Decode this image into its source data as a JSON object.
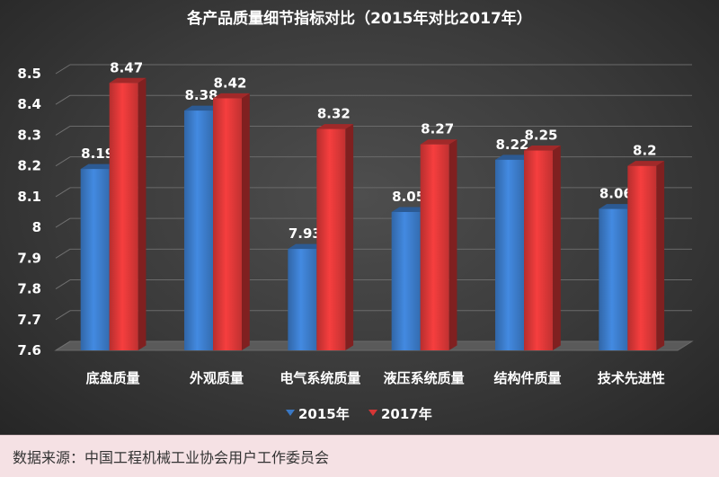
{
  "chart_data": {
    "type": "bar",
    "title": "各产品质量细节指标对比（2015年对比2017年）",
    "categories": [
      "底盘质量",
      "外观质量",
      "电气系统质量",
      "液压系统质量",
      "结构件质量",
      "技术先进性"
    ],
    "series": [
      {
        "name": "2015年",
        "values": [
          8.19,
          8.38,
          7.93,
          8.05,
          8.22,
          8.06
        ],
        "labels": [
          "8.19",
          "8.38",
          "7.93",
          "8.05",
          "8.22",
          "8.06"
        ],
        "color": "#3a78c4"
      },
      {
        "name": "2017年",
        "values": [
          8.47,
          8.42,
          8.32,
          8.27,
          8.25,
          8.2
        ],
        "labels": [
          "8.47",
          "8.42",
          "8.32",
          "8.27",
          "8.25",
          "8.2"
        ],
        "color": "#d63636"
      }
    ],
    "y_ticks": [
      "7.6",
      "7.7",
      "7.8",
      "7.9",
      "8",
      "8.1",
      "8.2",
      "8.3",
      "8.4",
      "8.5"
    ],
    "ylim": [
      7.6,
      8.5
    ],
    "legend_position": "bottom",
    "grid": true
  },
  "source": "数据来源：中国工程机械工业协会用户工作委员会"
}
